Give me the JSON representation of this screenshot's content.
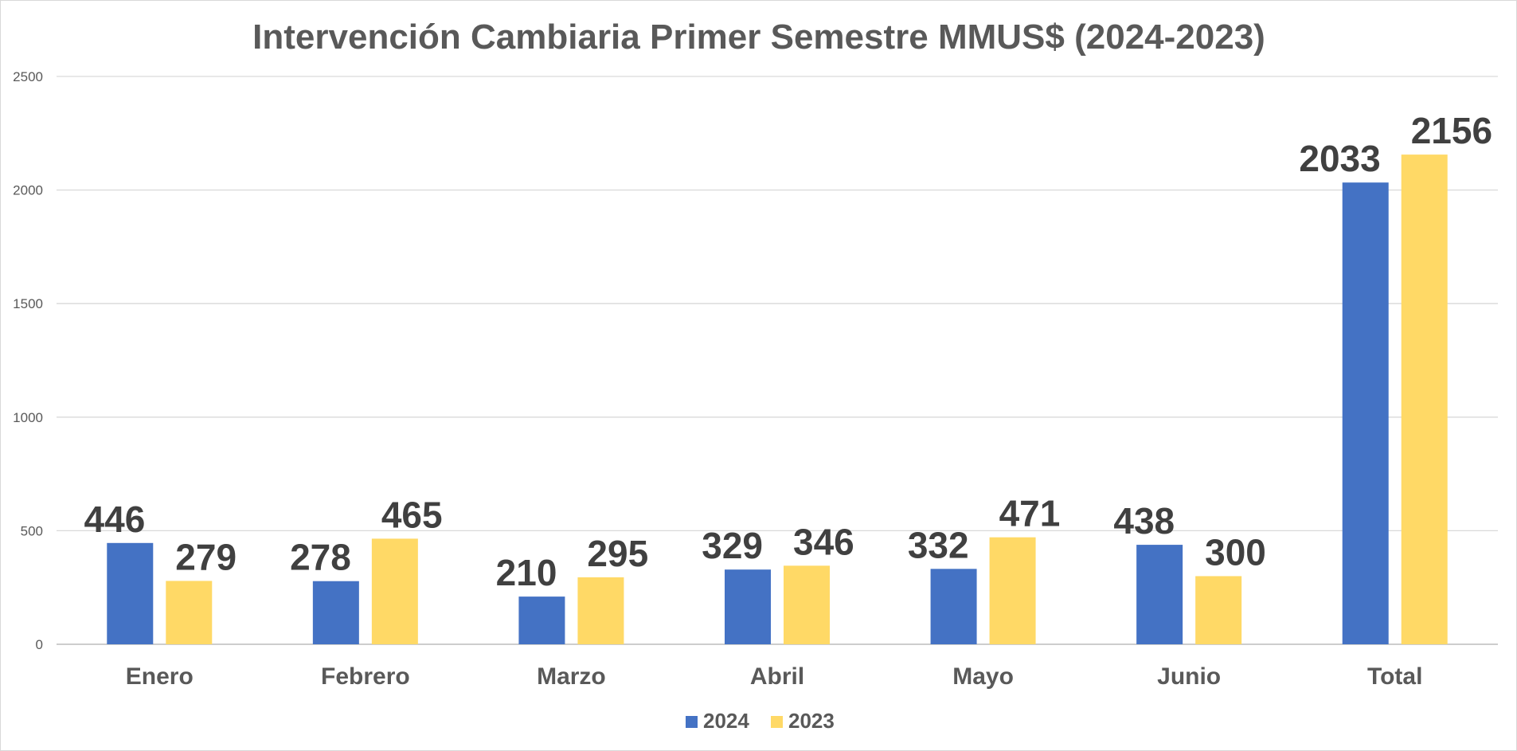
{
  "chart_data": {
    "type": "bar",
    "title": "Intervención Cambiaria Primer Semestre MMUS$ (2024-2023)",
    "xlabel": "",
    "ylabel": "",
    "categories": [
      "Enero",
      "Febrero",
      "Marzo",
      "Abril",
      "Mayo",
      "Junio",
      "Total"
    ],
    "series": [
      {
        "name": "2024",
        "values": [
          446,
          278,
          210,
          329,
          332,
          438,
          2033
        ],
        "color": "#4472C4"
      },
      {
        "name": "2023",
        "values": [
          279,
          465,
          295,
          346,
          471,
          300,
          2156
        ],
        "color": "#FFD966"
      }
    ],
    "ylim": [
      0,
      2500
    ],
    "yticks": [
      "0",
      "500",
      "1000",
      "1500",
      "2000",
      "2500"
    ],
    "grid": true,
    "data_labels": true,
    "legend_position": "bottom"
  }
}
